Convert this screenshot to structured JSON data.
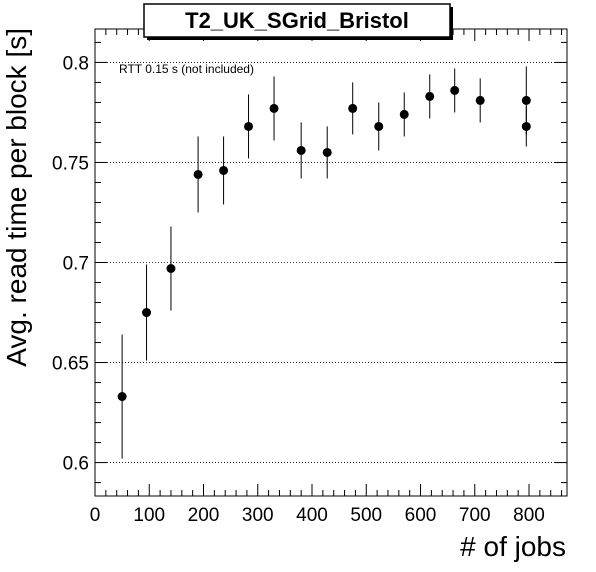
{
  "chart_data": {
    "type": "scatter",
    "title": "T2_UK_SGrid_Bristol",
    "xlabel": "# of jobs",
    "ylabel": "Avg. read time per block [s]",
    "annotation": "RTT 0.15 s (not included)",
    "xlim": [
      0,
      870
    ],
    "ylim": [
      0.5833,
      0.8167
    ],
    "x_ticks": [
      0,
      100,
      200,
      300,
      400,
      500,
      600,
      700,
      800
    ],
    "y_ticks": [
      0.6,
      0.65,
      0.7,
      0.75,
      0.8
    ],
    "y_tick_labels": [
      "0.6",
      "0.65",
      "0.7",
      "0.75",
      "0.8"
    ],
    "grid": "horizontal dotted",
    "marker_color": "#000000",
    "points": [
      {
        "x": 50,
        "y": 0.633,
        "err": 0.031
      },
      {
        "x": 95,
        "y": 0.675,
        "err": 0.024
      },
      {
        "x": 140,
        "y": 0.697,
        "err": 0.021
      },
      {
        "x": 190,
        "y": 0.744,
        "err": 0.019
      },
      {
        "x": 237,
        "y": 0.746,
        "err": 0.017
      },
      {
        "x": 283,
        "y": 0.768,
        "err": 0.016
      },
      {
        "x": 330,
        "y": 0.777,
        "err": 0.016
      },
      {
        "x": 380,
        "y": 0.756,
        "err": 0.014
      },
      {
        "x": 428,
        "y": 0.755,
        "err": 0.013
      },
      {
        "x": 475,
        "y": 0.777,
        "err": 0.013
      },
      {
        "x": 523,
        "y": 0.768,
        "err": 0.012
      },
      {
        "x": 570,
        "y": 0.774,
        "err": 0.011
      },
      {
        "x": 617,
        "y": 0.783,
        "err": 0.011
      },
      {
        "x": 663,
        "y": 0.786,
        "err": 0.011
      },
      {
        "x": 710,
        "y": 0.781,
        "err": 0.011
      },
      {
        "x": 795,
        "y": 0.781,
        "err": 0.017
      },
      {
        "x": 795,
        "y": 0.768,
        "err": 0.01
      }
    ]
  }
}
